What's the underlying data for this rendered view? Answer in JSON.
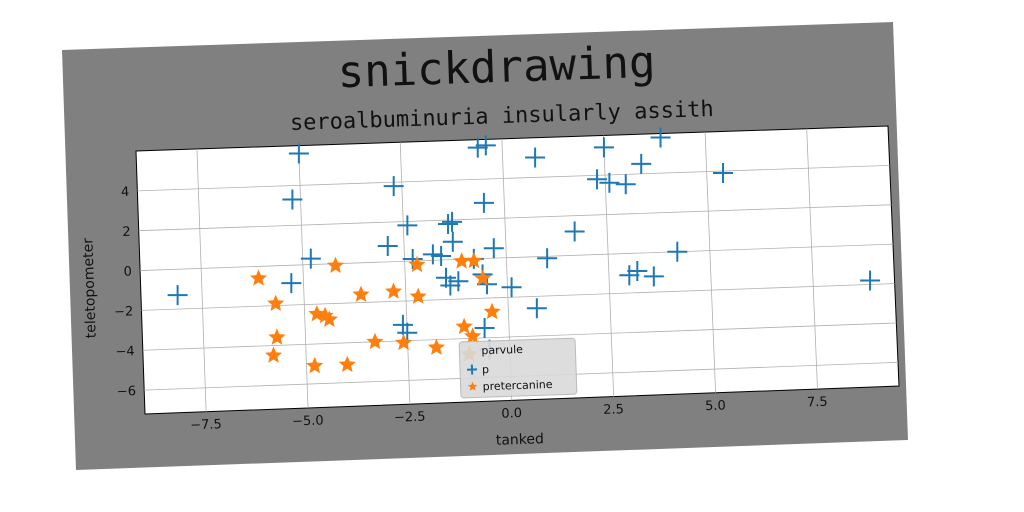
{
  "colors": {
    "series_p": "#1f77b4",
    "series_pretercanine": "#ff7f0e",
    "frame": "#808080",
    "plot_bg": "#ffffff"
  },
  "chart_data": {
    "type": "scatter",
    "title": "snickdrawing",
    "subtitle": "seroalbuminuria insularly assith",
    "xlabel": "tanked",
    "ylabel": "teletopometer",
    "xlim": [
      -9,
      9.5
    ],
    "ylim": [
      -7.2,
      6
    ],
    "xticks": [
      -7.5,
      -5.0,
      -2.5,
      0.0,
      2.5,
      5.0,
      7.5
    ],
    "xtick_labels": [
      "−7.5",
      "−5.0",
      "−2.5",
      "0.0",
      "2.5",
      "5.0",
      "7.5"
    ],
    "yticks": [
      -6,
      -4,
      -2,
      0,
      2,
      4
    ],
    "ytick_labels": [
      "−6",
      "−4",
      "−2",
      "0",
      "2",
      "4"
    ],
    "grid": true,
    "legend": {
      "title": "parvule",
      "placement": "lower-center",
      "entries": [
        "p",
        "pretercanine"
      ]
    },
    "series": [
      {
        "name": "p",
        "marker": "plus",
        "points": [
          [
            -8.1,
            -1.3
          ],
          [
            -5.0,
            5.6
          ],
          [
            -5.2,
            3.3
          ],
          [
            -5.3,
            -0.9
          ],
          [
            -4.8,
            0.3
          ],
          [
            -2.9,
            0.8
          ],
          [
            -2.7,
            3.8
          ],
          [
            -2.4,
            1.8
          ],
          [
            -2.3,
            0.1
          ],
          [
            -2.6,
            -3.2
          ],
          [
            -2.5,
            -3.6
          ],
          [
            -1.8,
            0.3
          ],
          [
            -1.4,
            1.8
          ],
          [
            -1.3,
            1.9
          ],
          [
            -1.3,
            0.9
          ],
          [
            -1.6,
            0.2
          ],
          [
            -1.5,
            -0.9
          ],
          [
            -1.2,
            -1.1
          ],
          [
            -1.4,
            -1.3
          ],
          [
            -0.8,
            0.0
          ],
          [
            -0.6,
            -0.8
          ],
          [
            -0.5,
            -1.3
          ],
          [
            -0.5,
            2.8
          ],
          [
            -0.6,
            5.6
          ],
          [
            -0.4,
            5.7
          ],
          [
            -0.3,
            0.5
          ],
          [
            0.1,
            -1.5
          ],
          [
            -0.6,
            -3.5
          ],
          [
            -0.5,
            -4.6
          ],
          [
            0.7,
            -2.6
          ],
          [
            0.8,
            5.0
          ],
          [
            1.0,
            -0.1
          ],
          [
            1.7,
            1.2
          ],
          [
            2.3,
            3.8
          ],
          [
            2.5,
            5.4
          ],
          [
            2.6,
            3.6
          ],
          [
            3.0,
            3.5
          ],
          [
            3.2,
            -0.9
          ],
          [
            3.0,
            -1.1
          ],
          [
            3.4,
            4.5
          ],
          [
            3.6,
            -1.2
          ],
          [
            3.9,
            5.8
          ],
          [
            4.2,
            0.0
          ],
          [
            5.4,
            3.9
          ],
          [
            8.9,
            -1.8
          ]
        ]
      },
      {
        "name": "pretercanine",
        "marker": "star",
        "points": [
          [
            -6.1,
            -0.6
          ],
          [
            -5.7,
            -1.9
          ],
          [
            -5.7,
            -3.6
          ],
          [
            -5.8,
            -4.5
          ],
          [
            -4.7,
            -2.5
          ],
          [
            -4.5,
            -2.6
          ],
          [
            -4.4,
            -2.8
          ],
          [
            -4.8,
            -5.1
          ],
          [
            -4.0,
            -5.1
          ],
          [
            -4.2,
            -0.1
          ],
          [
            -3.6,
            -1.6
          ],
          [
            -3.3,
            -4.0
          ],
          [
            -2.8,
            -1.5
          ],
          [
            -2.6,
            -4.1
          ],
          [
            -2.2,
            -0.2
          ],
          [
            -2.2,
            -1.8
          ],
          [
            -1.8,
            -4.4
          ],
          [
            -1.1,
            -0.1
          ],
          [
            -0.8,
            -0.1
          ],
          [
            -1.1,
            -3.4
          ],
          [
            -0.9,
            -3.9
          ],
          [
            -0.6,
            -1.0
          ],
          [
            -0.4,
            -2.7
          ],
          [
            -1.0,
            -4.8
          ]
        ]
      }
    ]
  }
}
